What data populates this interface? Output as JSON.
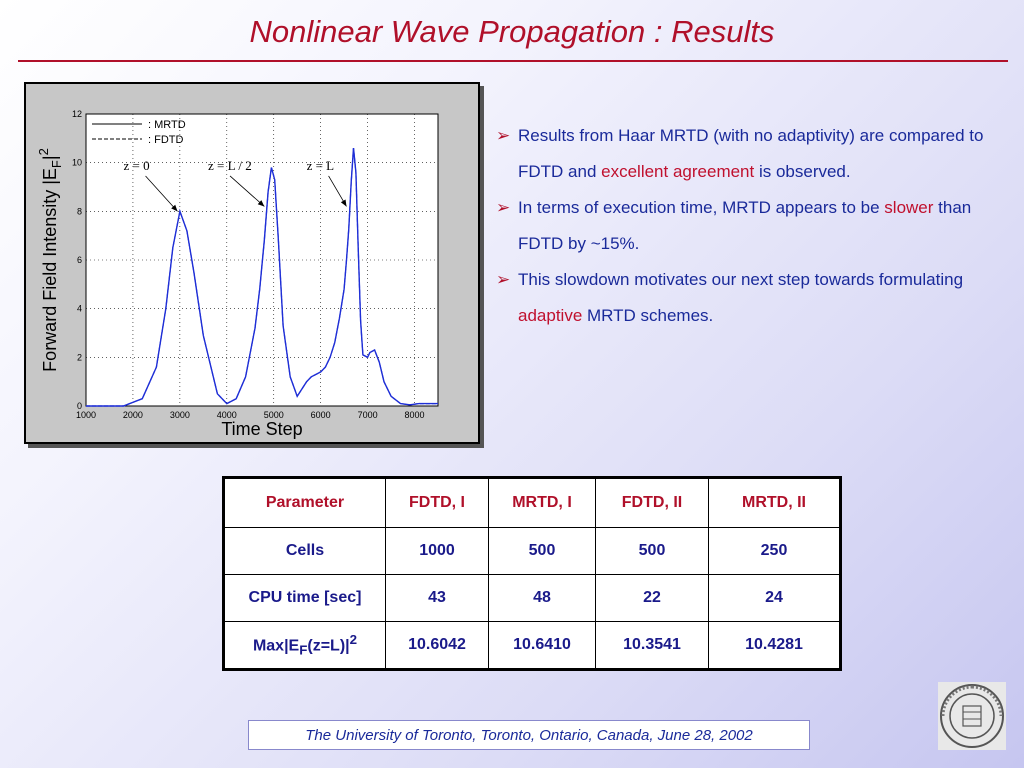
{
  "slide": {
    "title": "Nonlinear Wave Propagation  : Results",
    "footer": "The University of Toronto, Toronto, Ontario, Canada, June 28, 2002",
    "seal_text": "UNIVERSITY OF MICHIGAN"
  },
  "bullets": [
    {
      "arrow": "➢",
      "parts": [
        "Results from Haar MRTD (with no adaptivity) are compared to FDTD and ",
        "excellent agreement",
        " is observed."
      ]
    },
    {
      "arrow": "➢",
      "parts": [
        "In terms of execution time, MRTD appears to be ",
        "slower",
        " than FDTD by ~15%."
      ]
    },
    {
      "arrow": "➢",
      "parts": [
        "This slowdown motivates our next step towards formulating ",
        "adaptive",
        " MRTD schemes."
      ]
    }
  ],
  "colors": {
    "title": "#b0102a",
    "text": "#1a2a9a",
    "highlight": "#c0102e",
    "curve": "#1f2fd6"
  },
  "chart_data": {
    "type": "line",
    "xlabel": "Time Step",
    "ylabel": "Forward Field Intensity |E",
    "ylabel_sub": "F",
    "ylabel_tail": "|",
    "ylabel_sup": "2",
    "xlim": [
      1000,
      8500
    ],
    "ylim": [
      0,
      12
    ],
    "xticks": [
      1000,
      2000,
      3000,
      4000,
      5000,
      6000,
      7000,
      8000
    ],
    "yticks": [
      0,
      2,
      4,
      6,
      8,
      10,
      12
    ],
    "grid": true,
    "legend_position": "top-left",
    "series": [
      {
        "name": ": MRTD",
        "style": "solid",
        "x": [
          1000,
          1800,
          2200,
          2500,
          2700,
          2850,
          3000,
          3150,
          3300,
          3500,
          3800,
          4000,
          4200,
          4400,
          4600,
          4700,
          4800,
          4880,
          4950,
          5020,
          5100,
          5200,
          5350,
          5500,
          5600,
          5700,
          5800,
          5900,
          6000,
          6100,
          6200,
          6300,
          6400,
          6500,
          6550,
          6600,
          6650,
          6700,
          6750,
          6800,
          6850,
          6900,
          7000,
          7050,
          7150,
          7250,
          7350,
          7500,
          7700,
          7900,
          8100,
          8300,
          8500
        ],
        "y": [
          0,
          0,
          0.3,
          1.6,
          4.0,
          6.5,
          8.0,
          7.2,
          5.5,
          2.9,
          0.5,
          0.1,
          0.3,
          1.2,
          3.2,
          4.8,
          6.8,
          8.8,
          9.8,
          9.3,
          6.8,
          3.3,
          1.2,
          0.4,
          0.7,
          1.0,
          1.2,
          1.3,
          1.4,
          1.6,
          2.0,
          2.6,
          3.6,
          4.8,
          6.0,
          7.3,
          9.2,
          10.6,
          9.6,
          6.5,
          3.5,
          2.1,
          2.0,
          2.2,
          2.3,
          1.8,
          1.0,
          0.4,
          0.1,
          0.05,
          0.1,
          0.1,
          0.1
        ]
      },
      {
        "name": ": FDTD",
        "style": "dashed",
        "x": [
          1000,
          1800,
          2200,
          2500,
          2700,
          2850,
          3000,
          3150,
          3300,
          3500,
          3800,
          4000,
          4200,
          4400,
          4600,
          4700,
          4800,
          4880,
          4950,
          5020,
          5100,
          5200,
          5350,
          5500,
          5600,
          5700,
          5800,
          5900,
          6000,
          6100,
          6200,
          6300,
          6400,
          6500,
          6550,
          6600,
          6650,
          6700,
          6750,
          6800,
          6850,
          6900,
          7000,
          7050,
          7150,
          7250,
          7350,
          7500,
          7700,
          7900,
          8100,
          8300,
          8500
        ],
        "y": [
          0,
          0,
          0.3,
          1.6,
          4.0,
          6.5,
          8.0,
          7.2,
          5.5,
          2.9,
          0.5,
          0.1,
          0.3,
          1.2,
          3.2,
          4.8,
          6.8,
          8.8,
          9.8,
          9.3,
          6.8,
          3.3,
          1.2,
          0.4,
          0.7,
          1.0,
          1.2,
          1.3,
          1.4,
          1.6,
          2.0,
          2.6,
          3.6,
          4.8,
          6.0,
          7.3,
          9.2,
          10.6,
          9.6,
          6.5,
          3.5,
          2.1,
          2.0,
          2.2,
          2.3,
          1.8,
          1.0,
          0.4,
          0.1,
          0.05,
          0.1,
          0.1,
          0.1
        ]
      }
    ],
    "annotations": [
      {
        "text": "z = 0",
        "x": 1800,
        "y": 9.7,
        "arrow_to": [
          2950,
          8.0
        ]
      },
      {
        "text": "z = L / 2",
        "x": 3600,
        "y": 9.7,
        "arrow_to": [
          4800,
          8.2
        ]
      },
      {
        "text": "z = L",
        "x": 5700,
        "y": 9.7,
        "arrow_to": [
          6550,
          8.2
        ]
      }
    ]
  },
  "table": {
    "headers": [
      "Parameter",
      "FDTD, I",
      "MRTD, I",
      "FDTD, II",
      "MRTD, II"
    ],
    "rows": [
      [
        "Cells",
        "1000",
        "500",
        "500",
        "250"
      ],
      [
        "CPU time [sec]",
        "43",
        "48",
        "22",
        "24"
      ]
    ],
    "max_row": {
      "label_pre": "Max|E",
      "label_sub": "F",
      "label_post": "(z=L)|",
      "label_sup": "2",
      "values": [
        "10.6042",
        "10.6410",
        "10.3541",
        "10.4281"
      ]
    }
  }
}
